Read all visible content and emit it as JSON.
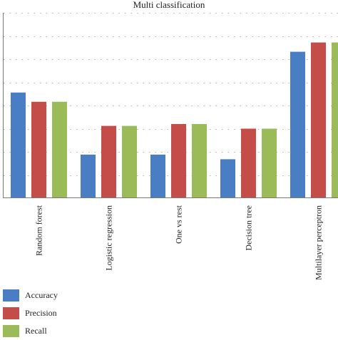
{
  "chart_data": {
    "type": "bar",
    "title": "Multi classification",
    "xlabel": "",
    "ylabel": "",
    "ylim": [
      0,
      1.0
    ],
    "grid": "horizontal-dotted",
    "legend_position": "bottom-left",
    "categories": [
      "Random forest",
      "Logistic regression",
      "One vs rest",
      "Decision tree",
      "Multilayer perceptron"
    ],
    "series": [
      {
        "name": "Accuracy",
        "color": "#4a7ec4",
        "values": [
          0.57,
          0.235,
          0.235,
          0.21,
          0.79
        ]
      },
      {
        "name": "Precision",
        "color": "#c44d4a",
        "values": [
          0.52,
          0.39,
          0.4,
          0.375,
          0.84
        ]
      },
      {
        "name": "Recall",
        "color": "#9bbb59",
        "values": [
          0.52,
          0.39,
          0.4,
          0.375,
          0.84
        ]
      }
    ]
  }
}
